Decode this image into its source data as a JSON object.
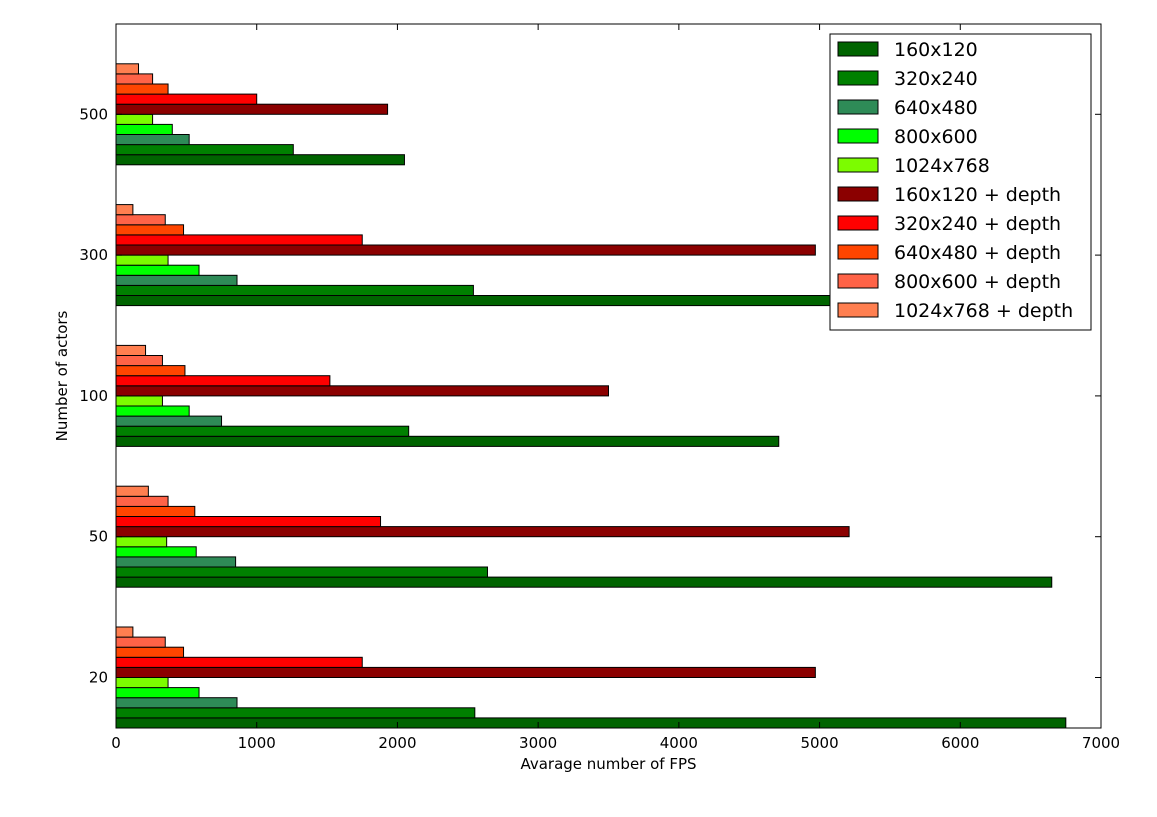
{
  "chart_data": {
    "type": "bar",
    "orientation": "horizontal",
    "categories": [
      "20",
      "50",
      "100",
      "300",
      "500"
    ],
    "xlabel": "Avarage number of FPS",
    "ylabel": "Number of actors",
    "xlim": [
      0,
      7000
    ],
    "xticks": [
      "0",
      "1000",
      "2000",
      "3000",
      "4000",
      "5000",
      "6000",
      "7000"
    ],
    "grid": false,
    "legend_position": "top-right",
    "series": [
      {
        "name": "160x120",
        "color": "#006400",
        "values": [
          6750,
          6650,
          4710,
          5280,
          2050
        ]
      },
      {
        "name": "320x240",
        "color": "#008000",
        "values": [
          2550,
          2640,
          2080,
          2540,
          1260
        ]
      },
      {
        "name": "640x480",
        "color": "#2e8b57",
        "values": [
          860,
          850,
          750,
          860,
          520
        ]
      },
      {
        "name": "800x600",
        "color": "#00ff00",
        "values": [
          590,
          570,
          520,
          590,
          400
        ]
      },
      {
        "name": "1024x768",
        "color": "#7cfc00",
        "values": [
          370,
          360,
          330,
          370,
          260
        ]
      },
      {
        "name": "160x120 + depth",
        "color": "#8b0000",
        "values": [
          4970,
          5210,
          3500,
          4970,
          1930
        ]
      },
      {
        "name": "320x240 + depth",
        "color": "#ff0000",
        "values": [
          1750,
          1880,
          1520,
          1750,
          1000
        ]
      },
      {
        "name": "640x480 + depth",
        "color": "#ff4500",
        "values": [
          480,
          560,
          490,
          480,
          370
        ]
      },
      {
        "name": "800x600 + depth",
        "color": "#ff6347",
        "values": [
          350,
          370,
          330,
          350,
          260
        ]
      },
      {
        "name": "1024x768 + depth",
        "color": "#ff7f50",
        "values": [
          120,
          230,
          210,
          120,
          160
        ]
      }
    ]
  }
}
